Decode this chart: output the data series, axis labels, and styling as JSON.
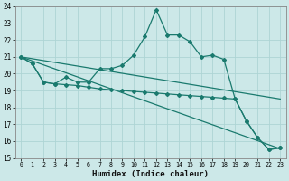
{
  "line1_x": [
    0,
    1,
    2,
    3,
    4,
    5,
    6,
    7,
    8,
    9,
    10,
    11,
    12,
    13,
    14,
    15,
    16,
    17,
    18,
    19,
    20,
    21,
    22,
    23
  ],
  "line1_y": [
    21.0,
    20.6,
    19.5,
    19.4,
    19.8,
    19.5,
    19.5,
    20.3,
    20.3,
    20.5,
    21.1,
    22.2,
    23.8,
    22.3,
    22.3,
    21.9,
    21.0,
    21.1,
    20.85,
    18.5,
    17.2,
    16.2,
    15.5,
    15.6
  ],
  "line2_x": [
    0,
    1,
    2,
    3,
    4,
    5,
    6,
    7,
    8,
    9,
    10,
    11,
    12,
    13,
    14,
    15,
    16,
    17,
    18,
    19,
    20,
    21,
    22,
    23
  ],
  "line2_y": [
    21.0,
    20.6,
    19.5,
    19.4,
    19.35,
    19.3,
    19.2,
    19.1,
    19.05,
    19.0,
    18.95,
    18.9,
    18.85,
    18.8,
    18.75,
    18.7,
    18.65,
    18.6,
    18.55,
    18.5,
    17.2,
    16.2,
    15.5,
    15.6
  ],
  "line3_x": [
    0,
    23
  ],
  "line3_y": [
    21.0,
    18.5
  ],
  "line4_x": [
    0,
    23
  ],
  "line4_y": [
    21.0,
    15.55
  ],
  "color": "#1a7a6e",
  "bg_color": "#cce8e8",
  "grid_color": "#aed4d4",
  "xlabel": "Humidex (Indice chaleur)",
  "ylim": [
    15,
    24
  ],
  "xlim": [
    -0.5,
    23.5
  ],
  "yticks": [
    15,
    16,
    17,
    18,
    19,
    20,
    21,
    22,
    23,
    24
  ],
  "xticks": [
    0,
    1,
    2,
    3,
    4,
    5,
    6,
    7,
    8,
    9,
    10,
    11,
    12,
    13,
    14,
    15,
    16,
    17,
    18,
    19,
    20,
    21,
    22,
    23
  ]
}
